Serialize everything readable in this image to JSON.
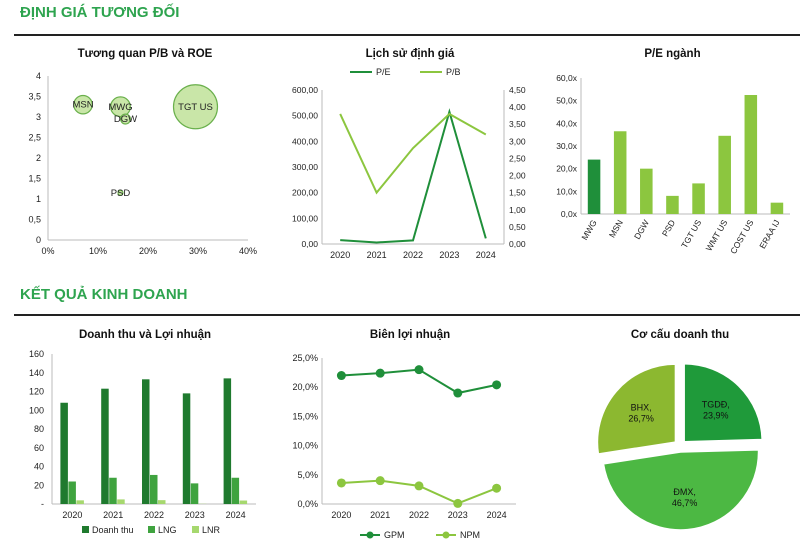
{
  "sections": [
    {
      "title": "ĐỊNH GIÁ TƯƠNG ĐỐI"
    },
    {
      "title": "KẾT QUẢ KINH DOANH"
    }
  ],
  "colors": {
    "dark_green": "#1f8f3a",
    "light_green": "#8cc63f",
    "mid_green": "#3fb03f",
    "bubble_fill": "#c9e6a8"
  },
  "chart_data": [
    {
      "id": "pb_roe",
      "type": "scatter",
      "title": "Tương quan P/B và ROE",
      "xlim": [
        0,
        40
      ],
      "ylim": [
        0,
        4
      ],
      "x_ticks": [
        "0%",
        "10%",
        "20%",
        "30%",
        "40%"
      ],
      "y_ticks": [
        "0",
        "0,5",
        "1",
        "1,5",
        "2",
        "2,5",
        "3",
        "3,5",
        "4"
      ],
      "points": [
        {
          "label": "MSN",
          "x": 7,
          "y": 3.3,
          "size": 0.7
        },
        {
          "label": "MWG",
          "x": 14.5,
          "y": 3.25,
          "size": 0.8
        },
        {
          "label": "DGW",
          "x": 15.5,
          "y": 2.95,
          "size": 0.2
        },
        {
          "label": "TGT US",
          "x": 29.5,
          "y": 3.25,
          "size": 4.0
        },
        {
          "label": "PSD",
          "x": 14.5,
          "y": 1.15,
          "size": 0.05
        }
      ]
    },
    {
      "id": "valuation_history",
      "type": "line",
      "title": "Lịch sử định giá",
      "categories": [
        "2020",
        "2021",
        "2022",
        "2023",
        "2024"
      ],
      "y_left_ticks": [
        "0,00",
        "100,00",
        "200,00",
        "300,00",
        "400,00",
        "500,00",
        "600,00"
      ],
      "y_right_ticks": [
        "0,00",
        "0,50",
        "1,00",
        "1,50",
        "2,00",
        "2,50",
        "3,00",
        "3,50",
        "4,00",
        "4,50"
      ],
      "ylim_left": [
        0,
        600
      ],
      "ylim_right": [
        0,
        4.5
      ],
      "series": [
        {
          "name": "P/E",
          "axis": "left",
          "color": "#1f8f3a",
          "values": [
            15,
            6,
            14,
            515,
            22
          ]
        },
        {
          "name": "P/B",
          "axis": "right",
          "color": "#8cc63f",
          "values": [
            3.8,
            1.5,
            2.8,
            3.8,
            3.2
          ]
        }
      ]
    },
    {
      "id": "pe_industry",
      "type": "bar",
      "title": "P/E ngành",
      "categories": [
        "MWG",
        "MSN",
        "DGW",
        "PSD",
        "TGT US",
        "WMT US",
        "COST US",
        "ERAA IJ"
      ],
      "values": [
        24,
        36.5,
        20,
        8,
        13.5,
        34.5,
        52.5,
        5
      ],
      "colors": [
        "#1f8f3a",
        "#8cc63f",
        "#8cc63f",
        "#8cc63f",
        "#8cc63f",
        "#8cc63f",
        "#8cc63f",
        "#8cc63f"
      ],
      "ylim": [
        0,
        60
      ],
      "y_ticks": [
        "0,0x",
        "10,0x",
        "20,0x",
        "30,0x",
        "40,0x",
        "50,0x",
        "60,0x"
      ]
    },
    {
      "id": "revenue_profit",
      "type": "bar",
      "title": "Doanh thu và Lợi nhuận",
      "categories": [
        "2020",
        "2021",
        "2022",
        "2023",
        "2024"
      ],
      "ylim": [
        0,
        160
      ],
      "y_ticks": [
        "-",
        "20",
        "40",
        "60",
        "80",
        "100",
        "120",
        "140",
        "160"
      ],
      "series": [
        {
          "name": "Doanh thu",
          "color": "#1f7a2e",
          "values": [
            108,
            123,
            133,
            118,
            134
          ]
        },
        {
          "name": "LNG",
          "color": "#3fa33f",
          "values": [
            24,
            28,
            31,
            22,
            28
          ]
        },
        {
          "name": "LNR",
          "color": "#a6d86e",
          "values": [
            3.9,
            4.9,
            4.1,
            0.2,
            3.7
          ]
        }
      ]
    },
    {
      "id": "profit_margin",
      "type": "line",
      "title": "Biên lợi nhuận",
      "categories": [
        "2020",
        "2021",
        "2022",
        "2023",
        "2024"
      ],
      "ylim": [
        0,
        25
      ],
      "y_ticks": [
        "0,0%",
        "5,0%",
        "10,0%",
        "15,0%",
        "20,0%",
        "25,0%"
      ],
      "series": [
        {
          "name": "GPM",
          "color": "#1f8f3a",
          "values": [
            22.0,
            22.4,
            23.0,
            19.0,
            20.4
          ]
        },
        {
          "name": "NPM",
          "color": "#8cc63f",
          "values": [
            3.6,
            4.0,
            3.1,
            0.1,
            2.7
          ]
        }
      ]
    },
    {
      "id": "revenue_structure",
      "type": "pie",
      "title": "Cơ cấu doanh thu",
      "slices": [
        {
          "name": "TGDĐ",
          "label": "TGDĐ,\n23,9%",
          "value": 23.9,
          "color": "#1f9a3a"
        },
        {
          "name": "ĐMX",
          "label": "ĐMX,\n46,7%",
          "value": 46.7,
          "color": "#4cb843"
        },
        {
          "name": "BHX",
          "label": "BHX,\n26,7%",
          "value": 26.7,
          "color": "#8cb830"
        }
      ]
    }
  ]
}
